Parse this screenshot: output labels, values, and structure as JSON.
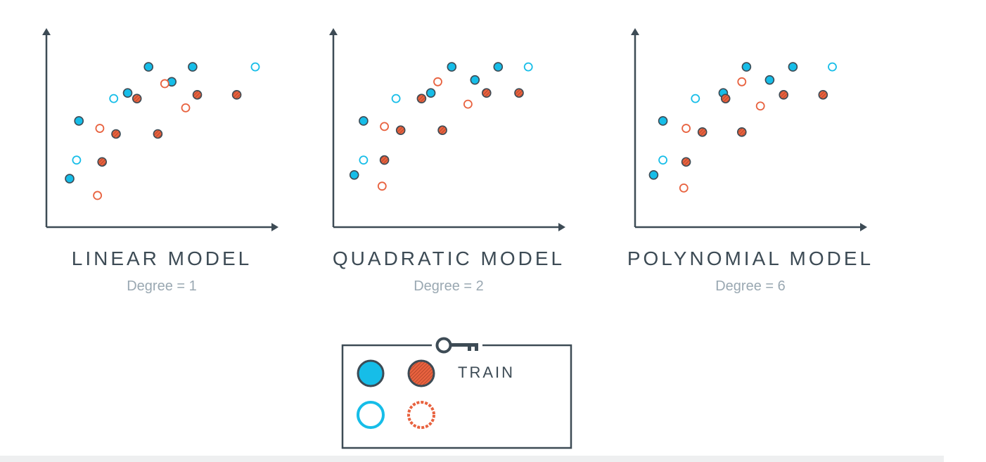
{
  "chart_data": [
    {
      "type": "scatter",
      "title": "LINEAR MODEL",
      "subtitle": "Degree = 1",
      "series": [
        {
          "color": "#16bde8",
          "filled": true,
          "x": [
            1.0,
            1.4,
            3.5,
            4.4,
            5.4,
            6.3
          ],
          "y": [
            2.6,
            5.7,
            7.2,
            8.6,
            7.8,
            8.6
          ]
        },
        {
          "color": "#16bde8",
          "filled": false,
          "x": [
            1.3,
            2.9,
            9.0
          ],
          "y": [
            3.6,
            6.9,
            8.6
          ]
        },
        {
          "color": "#e8623f",
          "filled": true,
          "x": [
            2.4,
            3.0,
            3.9,
            4.8,
            6.5,
            8.2
          ],
          "y": [
            3.5,
            5.0,
            6.9,
            5.0,
            7.1,
            7.1
          ]
        },
        {
          "color": "#e8623f",
          "filled": false,
          "x": [
            2.2,
            2.3,
            5.1,
            6.0
          ],
          "y": [
            1.7,
            5.3,
            7.7,
            6.4
          ]
        }
      ]
    },
    {
      "type": "scatter",
      "title": "QUADRATIC MODEL",
      "subtitle": "Degree = 2",
      "series": [
        {
          "color": "#16bde8",
          "filled": true,
          "x": [
            0.9,
            1.3,
            4.2,
            5.1,
            6.1,
            7.1
          ],
          "y": [
            2.8,
            5.7,
            7.2,
            8.6,
            7.9,
            8.6
          ]
        },
        {
          "color": "#16bde8",
          "filled": false,
          "x": [
            1.3,
            2.7,
            8.4
          ],
          "y": [
            3.6,
            6.9,
            8.6
          ]
        },
        {
          "color": "#e8623f",
          "filled": true,
          "x": [
            2.2,
            2.9,
            3.8,
            4.7,
            6.6,
            8.0
          ],
          "y": [
            3.6,
            5.2,
            6.9,
            5.2,
            7.2,
            7.2
          ]
        },
        {
          "color": "#e8623f",
          "filled": false,
          "x": [
            2.1,
            2.2,
            4.5,
            5.8
          ],
          "y": [
            2.2,
            5.4,
            7.8,
            6.6
          ]
        }
      ]
    },
    {
      "type": "scatter",
      "title": "POLYNOMIAL MODEL",
      "subtitle": "Degree = 6",
      "series": [
        {
          "color": "#16bde8",
          "filled": true,
          "x": [
            0.8,
            1.2,
            3.8,
            4.8,
            5.8,
            6.8
          ],
          "y": [
            2.8,
            5.7,
            7.2,
            8.6,
            7.9,
            8.6
          ]
        },
        {
          "color": "#16bde8",
          "filled": false,
          "x": [
            1.2,
            2.6,
            8.5
          ],
          "y": [
            3.6,
            6.9,
            8.6
          ]
        },
        {
          "color": "#e8623f",
          "filled": true,
          "x": [
            2.2,
            2.9,
            3.9,
            4.6,
            6.4,
            8.1
          ],
          "y": [
            3.5,
            5.1,
            6.9,
            5.1,
            7.1,
            7.1
          ]
        },
        {
          "color": "#e8623f",
          "filled": false,
          "x": [
            2.1,
            2.2,
            4.6,
            5.4
          ],
          "y": [
            2.1,
            5.3,
            7.8,
            6.5
          ]
        }
      ]
    }
  ],
  "legend": {
    "label": "TRAIN",
    "icon": "key-icon",
    "marker_colors": {
      "blue": "#16bde8",
      "orange": "#e8623f"
    }
  }
}
